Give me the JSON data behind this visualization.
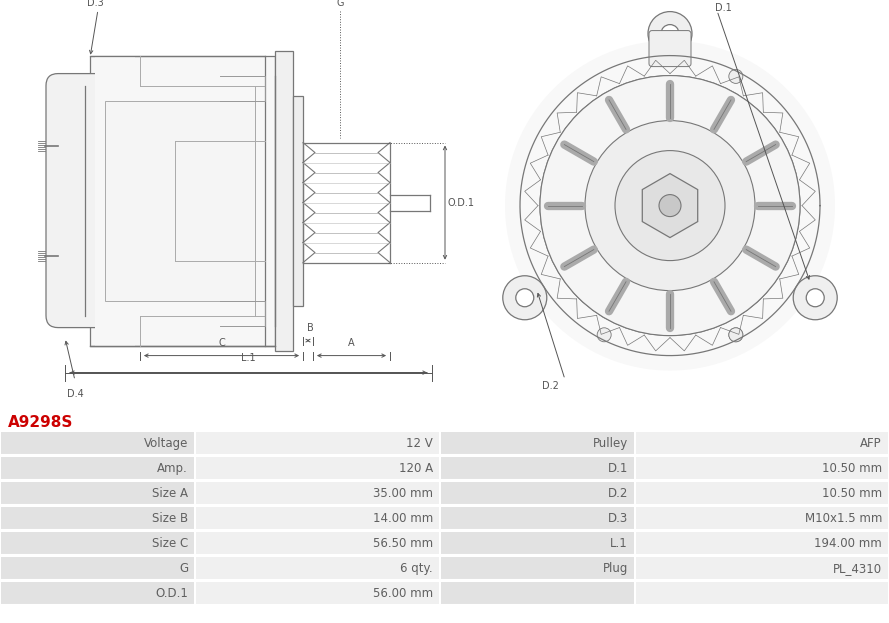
{
  "title": "A9298S",
  "title_color": "#cc0000",
  "table_rows": [
    [
      "Voltage",
      "12 V",
      "Pulley",
      "AFP"
    ],
    [
      "Amp.",
      "120 A",
      "D.1",
      "10.50 mm"
    ],
    [
      "Size A",
      "35.00 mm",
      "D.2",
      "10.50 mm"
    ],
    [
      "Size B",
      "14.00 mm",
      "D.3",
      "M10x1.5 mm"
    ],
    [
      "Size C",
      "56.50 mm",
      "L.1",
      "194.00 mm"
    ],
    [
      "G",
      "6 qty.",
      "Plug",
      "PL_4310"
    ],
    [
      "O.D.1",
      "56.00 mm",
      "",
      ""
    ]
  ],
  "bg_color_label": "#e2e2e2",
  "bg_color_value": "#f0f0f0",
  "text_color": "#606060",
  "font_size": 8.5,
  "diagram_bg": "#ffffff",
  "line_color": "#777777",
  "dim_color": "#555555"
}
